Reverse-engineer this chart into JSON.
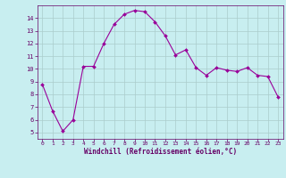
{
  "x": [
    0,
    1,
    2,
    3,
    4,
    5,
    6,
    7,
    8,
    9,
    10,
    11,
    12,
    13,
    14,
    15,
    16,
    17,
    18,
    19,
    20,
    21,
    22,
    23
  ],
  "y": [
    8.8,
    6.7,
    5.1,
    6.0,
    10.2,
    10.2,
    12.0,
    13.5,
    14.3,
    14.6,
    14.5,
    13.7,
    12.6,
    11.1,
    11.5,
    10.1,
    9.5,
    10.1,
    9.9,
    9.8,
    10.1,
    9.5,
    9.4,
    7.8
  ],
  "line_color": "#990099",
  "marker_color": "#990099",
  "bg_color": "#c8eef0",
  "grid_color": "#aacccc",
  "xlabel": "Windchill (Refroidissement éolien,°C)",
  "xlim": [
    -0.5,
    23.5
  ],
  "ylim": [
    4.5,
    15.0
  ],
  "yticks": [
    5,
    6,
    7,
    8,
    9,
    10,
    11,
    12,
    13,
    14
  ],
  "xticks": [
    0,
    1,
    2,
    3,
    4,
    5,
    6,
    7,
    8,
    9,
    10,
    11,
    12,
    13,
    14,
    15,
    16,
    17,
    18,
    19,
    20,
    21,
    22,
    23
  ],
  "xlabel_color": "#660066",
  "tick_color": "#660066"
}
